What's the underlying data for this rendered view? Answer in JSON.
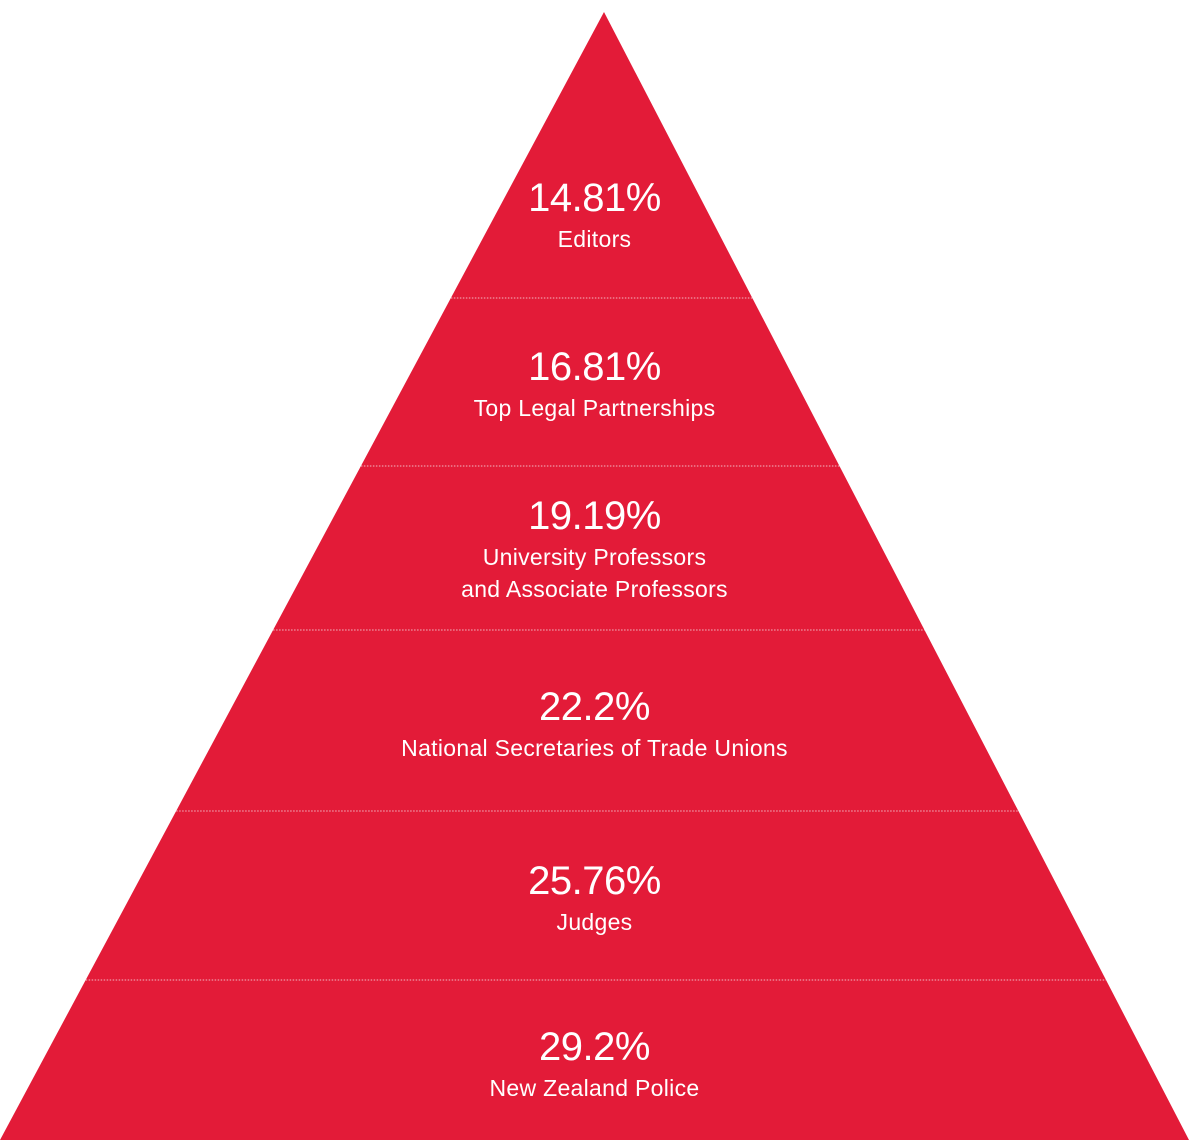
{
  "colors": {
    "pyramid_fill": "#e31b38",
    "divider": "#f2b8c2",
    "text": "#ffffff"
  },
  "tiers": [
    {
      "value": "14.81%",
      "label": "Editors"
    },
    {
      "value": "16.81%",
      "label": "Top Legal Partnerships"
    },
    {
      "value": "19.19%",
      "label": "University Professors\nand Associate Professors"
    },
    {
      "value": "22.2%",
      "label": "National Secretaries of Trade Unions"
    },
    {
      "value": "25.76%",
      "label": "Judges"
    },
    {
      "value": "29.2%",
      "label": "New Zealand Police"
    }
  ]
}
